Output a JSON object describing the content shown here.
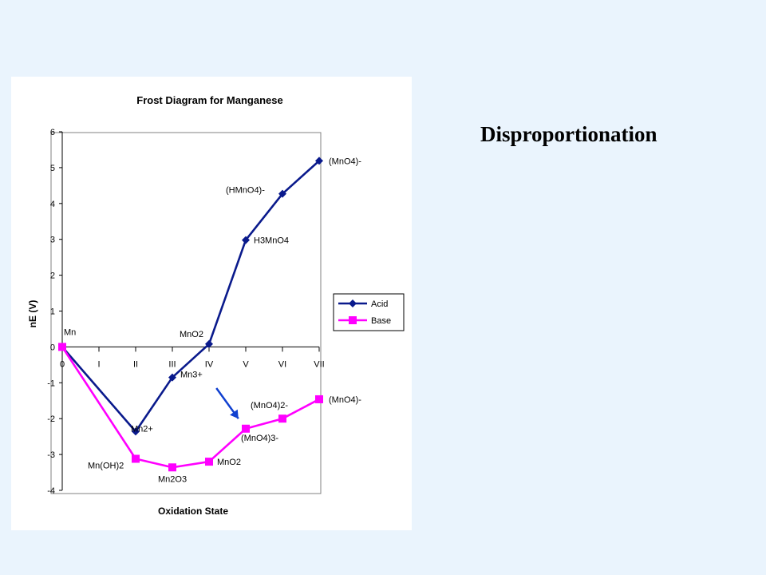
{
  "heading": "Disproportionation",
  "chart_data": {
    "type": "line",
    "title": "Frost Diagram for Manganese",
    "xlabel": "Oxidation State",
    "ylabel": "nE (V)",
    "categories": [
      "0",
      "I",
      "II",
      "III",
      "IV",
      "V",
      "VI",
      "VII"
    ],
    "ylim": [
      -4,
      6
    ],
    "yticks": [
      6,
      5,
      4,
      3,
      2,
      1,
      0,
      -1,
      -2,
      -3,
      -4
    ],
    "grid": false,
    "legend": "right",
    "series": [
      {
        "name": "Acid",
        "color": "#0a1a8c",
        "marker": "diamond",
        "points": [
          {
            "x": 0,
            "y": 0,
            "label": "Mn"
          },
          {
            "x": 2,
            "y": -2.36,
            "label": "Mn2+"
          },
          {
            "x": 3,
            "y": -0.85,
            "label": "Mn3+"
          },
          {
            "x": 4,
            "y": 0.08,
            "label": "MnO2"
          },
          {
            "x": 5,
            "y": 2.98,
            "label": "H3MnO4"
          },
          {
            "x": 6,
            "y": 4.27,
            "label": "(HMnO4)-"
          },
          {
            "x": 7,
            "y": 5.19,
            "label": "(MnO4)-"
          }
        ]
      },
      {
        "name": "Base",
        "color": "#ff00ff",
        "marker": "square",
        "points": [
          {
            "x": 0,
            "y": 0,
            "label": ""
          },
          {
            "x": 2,
            "y": -3.12,
            "label": "Mn(OH)2"
          },
          {
            "x": 3,
            "y": -3.36,
            "label": "Mn2O3"
          },
          {
            "x": 4,
            "y": -3.2,
            "label": "MnO2"
          },
          {
            "x": 5,
            "y": -2.28,
            "label": "(MnO4)3-"
          },
          {
            "x": 6,
            "y": -2.0,
            "label": "(MnO4)2-"
          },
          {
            "x": 7,
            "y": -1.46,
            "label": "(MnO4)-"
          }
        ]
      }
    ],
    "annotation": {
      "type": "arrow",
      "color": "#1040d0",
      "from": {
        "x": 4.2,
        "y": -1.15
      },
      "to": {
        "x": 4.8,
        "y": -2.0
      }
    }
  }
}
